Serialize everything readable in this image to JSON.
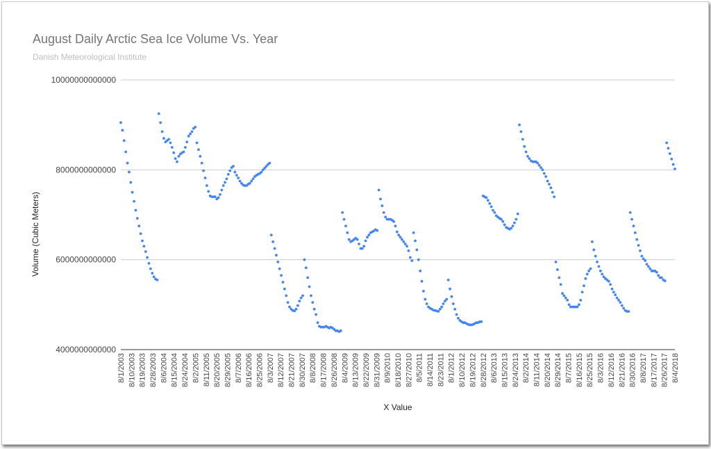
{
  "chart_data": {
    "type": "scatter",
    "title": "August Daily Arctic Sea Ice Volume Vs. Year",
    "subtitle": "Danish Meteorological Institute",
    "xlabel": "X Value",
    "ylabel": "Volume (Cubic Meters)",
    "ylim": [
      4000000000000,
      10000000000000
    ],
    "y_ticks": [
      "4000000000000",
      "6000000000000",
      "8000000000000",
      "10000000000000"
    ],
    "grid": true,
    "x_tick_labels": [
      "8/1/2003",
      "8/10/2003",
      "8/19/2003",
      "8/28/2003",
      "8/6/2004",
      "8/15/2004",
      "8/24/2004",
      "8/2/2005",
      "8/11/2005",
      "8/20/2005",
      "8/29/2005",
      "8/7/2006",
      "8/16/2006",
      "8/25/2006",
      "8/3/2007",
      "8/12/2007",
      "8/21/2007",
      "8/30/2007",
      "8/8/2008",
      "8/17/2008",
      "8/26/2008",
      "8/4/2009",
      "8/13/2009",
      "8/22/2009",
      "8/31/2009",
      "8/9/2010",
      "8/18/2010",
      "8/27/2010",
      "8/5/2011",
      "8/14/2011",
      "8/23/2011",
      "8/1/2012",
      "8/10/2012",
      "8/19/2012",
      "8/28/2012",
      "8/6/2013",
      "8/15/2013",
      "8/24/2013",
      "8/2/2014",
      "8/11/2014",
      "8/20/2014",
      "8/29/2014",
      "8/7/2015",
      "8/16/2015",
      "8/25/2015",
      "8/3/2016",
      "8/12/2016",
      "8/21/2016",
      "8/30/2016",
      "8/8/2017",
      "8/17/2017",
      "8/26/2017",
      "8/4/2018"
    ],
    "color": "#4285f4",
    "series": [
      {
        "x_start": "8/1/2003",
        "y_trillions": [
          9.05,
          8.88,
          8.65,
          8.4,
          8.15,
          7.95,
          7.72,
          7.5,
          7.3,
          7.1,
          6.92,
          6.75,
          6.58,
          6.42,
          6.3,
          6.18,
          6.05,
          5.92,
          5.8,
          5.7,
          5.62,
          5.57,
          5.55
        ]
      },
      {
        "x_start": "8/1/2004",
        "y_trillions": [
          9.25,
          9.05,
          8.85,
          8.7,
          8.62,
          8.65,
          8.68,
          8.6,
          8.5,
          8.38,
          8.25,
          8.18,
          8.3,
          8.35,
          8.38,
          8.4,
          8.5,
          8.62,
          8.75,
          8.8,
          8.85,
          8.92,
          8.95
        ]
      },
      {
        "x_start": "8/1/2005",
        "y_trillions": [
          8.6,
          8.45,
          8.3,
          8.15,
          7.98,
          7.82,
          7.65,
          7.52,
          7.42,
          7.4,
          7.4,
          7.4,
          7.35,
          7.38,
          7.45,
          7.55,
          7.65,
          7.72,
          7.8,
          7.9,
          7.98,
          8.05,
          8.08
        ]
      },
      {
        "x_start": "8/1/2006",
        "y_trillions": [
          7.95,
          7.88,
          7.82,
          7.75,
          7.7,
          7.66,
          7.65,
          7.65,
          7.68,
          7.7,
          7.75,
          7.8,
          7.85,
          7.88,
          7.9,
          7.92,
          7.95,
          8.0,
          8.04,
          8.08,
          8.12,
          8.15
        ]
      },
      {
        "x_start": "8/1/2007",
        "y_trillions": [
          6.55,
          6.4,
          6.25,
          6.1,
          5.95,
          5.8,
          5.65,
          5.5,
          5.35,
          5.2,
          5.05,
          4.95,
          4.9,
          4.87,
          4.86,
          4.9,
          4.98,
          5.08,
          5.15,
          5.2,
          6.0
        ]
      },
      {
        "x_start": "8/1/2008",
        "y_trillions": [
          5.82,
          5.6,
          5.4,
          5.2,
          5.05,
          4.9,
          4.78,
          4.6,
          4.52,
          4.5,
          4.5,
          4.5,
          4.52,
          4.5,
          4.48,
          4.5,
          4.48,
          4.45,
          4.42,
          4.42,
          4.4,
          4.42
        ]
      },
      {
        "x_start": "8/1/2009",
        "y_trillions": [
          7.05,
          6.9,
          6.75,
          6.6,
          6.45,
          6.4,
          6.42,
          6.45,
          6.48,
          6.45,
          6.35,
          6.25,
          6.25,
          6.3,
          6.42,
          6.5,
          6.55,
          6.6,
          6.62,
          6.64,
          6.67,
          6.65
        ]
      },
      {
        "x_start": "8/1/2010",
        "y_trillions": [
          7.55,
          7.35,
          7.2,
          7.05,
          6.95,
          6.9,
          6.9,
          6.9,
          6.88,
          6.85,
          6.75,
          6.62,
          6.55,
          6.5,
          6.45,
          6.4,
          6.35,
          6.3,
          6.2,
          6.05,
          5.98
        ]
      },
      {
        "x_start": "8/1/2011",
        "y_trillions": [
          6.6,
          6.42,
          6.22,
          6.0,
          5.75,
          5.52,
          5.3,
          5.12,
          5.02,
          4.95,
          4.92,
          4.9,
          4.88,
          4.87,
          4.86,
          4.85,
          4.9,
          4.95,
          5.02,
          5.08,
          5.12
        ]
      },
      {
        "x_start": "8/1/2012",
        "y_trillions": [
          5.55,
          5.35,
          5.18,
          5.02,
          4.9,
          4.78,
          4.7,
          4.65,
          4.62,
          4.6,
          4.6,
          4.58,
          4.56,
          4.55,
          4.55,
          4.56,
          4.58,
          4.6,
          4.6,
          4.62,
          4.62
        ]
      },
      {
        "x_start": "8/1/2013",
        "y_trillions": [
          7.42,
          7.4,
          7.38,
          7.32,
          7.25,
          7.18,
          7.1,
          7.05,
          6.98,
          6.95,
          6.92,
          6.9,
          6.85,
          6.78,
          6.72,
          6.7,
          6.68,
          6.7,
          6.75,
          6.82,
          6.9,
          7.02
        ]
      },
      {
        "x_start": "8/1/2014",
        "y_trillions": [
          9.0,
          8.85,
          8.68,
          8.52,
          8.4,
          8.3,
          8.25,
          8.2,
          8.18,
          8.18,
          8.18,
          8.15,
          8.1,
          8.05,
          8.0,
          7.92,
          7.85,
          7.75,
          7.68,
          7.6,
          7.5,
          7.4
        ]
      },
      {
        "x_start": "8/1/2015",
        "y_trillions": [
          5.95,
          5.78,
          5.6,
          5.45,
          5.25,
          5.2,
          5.15,
          5.1,
          5.0,
          4.95,
          4.95,
          4.95,
          4.95,
          4.95,
          5.0,
          5.1,
          5.28,
          5.42,
          5.58,
          5.68,
          5.75,
          5.8
        ]
      },
      {
        "x_start": "8/1/2016",
        "y_trillions": [
          6.4,
          6.22,
          6.08,
          5.95,
          5.85,
          5.75,
          5.68,
          5.62,
          5.58,
          5.55,
          5.52,
          5.45,
          5.35,
          5.28,
          5.22,
          5.15,
          5.1,
          5.05,
          4.98,
          4.92,
          4.87,
          4.85,
          4.85
        ]
      },
      {
        "x_start": "8/1/2017",
        "y_trillions": [
          7.05,
          6.9,
          6.75,
          6.6,
          6.45,
          6.32,
          6.2,
          6.08,
          6.02,
          5.98,
          5.9,
          5.85,
          5.8,
          5.75,
          5.75,
          5.75,
          5.72,
          5.65,
          5.6,
          5.6,
          5.55,
          5.53
        ]
      },
      {
        "x_start": "8/1/2018",
        "y_trillions": [
          8.6,
          8.48,
          8.36,
          8.24,
          8.12,
          8.02
        ]
      }
    ]
  }
}
